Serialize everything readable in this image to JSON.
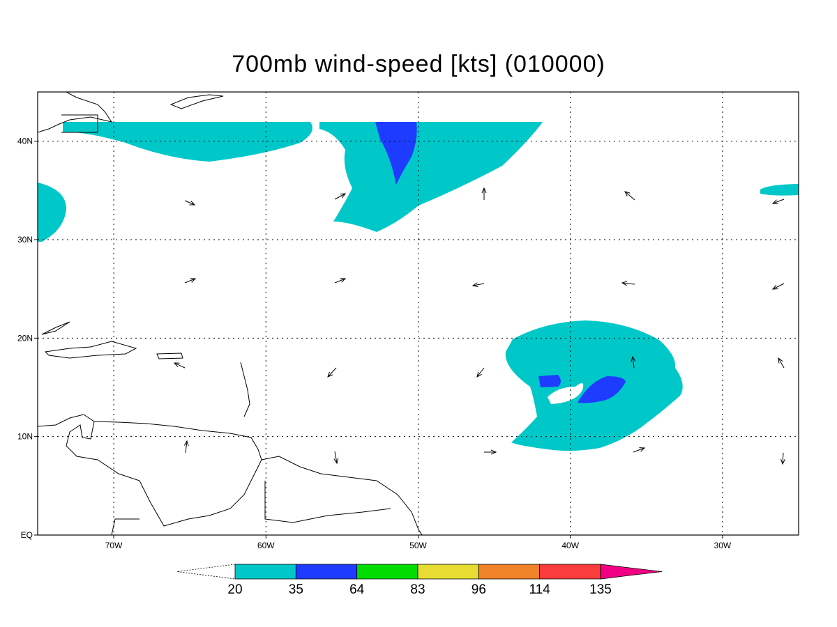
{
  "map": {
    "title": "700mb wind-speed [kts] (010000)",
    "lon_range": [
      -75,
      -25
    ],
    "lat_range": [
      0,
      45
    ],
    "grid": true,
    "lon_ticks": [
      {
        "value": -70,
        "label": "70W"
      },
      {
        "value": -60,
        "label": "60W"
      },
      {
        "value": -50,
        "label": "50W"
      },
      {
        "value": -40,
        "label": "40W"
      },
      {
        "value": -30,
        "label": "30W"
      }
    ],
    "lat_ticks": [
      {
        "value": 0,
        "label": "EQ"
      },
      {
        "value": 10,
        "label": "10N"
      },
      {
        "value": 20,
        "label": "20N"
      },
      {
        "value": 30,
        "label": "30N"
      },
      {
        "value": 40,
        "label": "40N"
      }
    ],
    "colorbar": {
      "levels": [
        20,
        35,
        64,
        83,
        96,
        114,
        135
      ],
      "colors": [
        "#00c8c8",
        "#1e3cff",
        "#00dc00",
        "#e6dc32",
        "#f08228",
        "#fa3c3c"
      ],
      "over_color": "#f00082"
    }
  }
}
